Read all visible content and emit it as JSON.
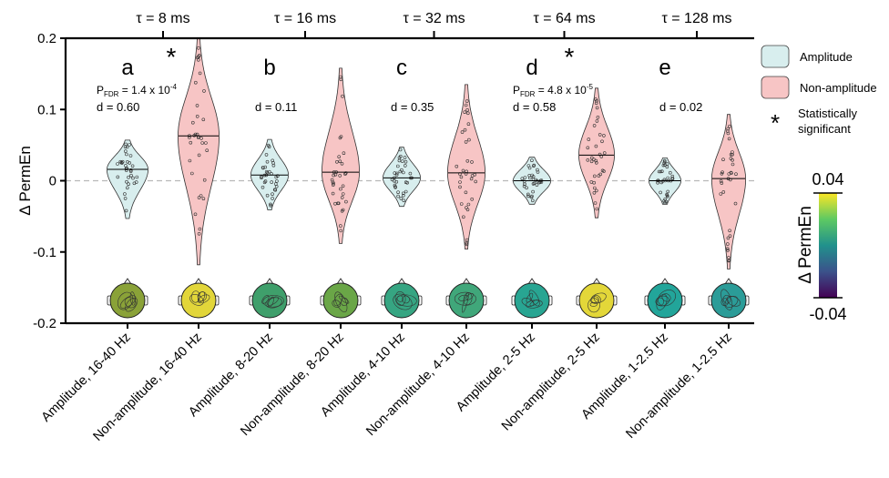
{
  "chart_data": {
    "type": "violin",
    "ylabel": "Δ PermEn",
    "ylim": [
      -0.2,
      0.2
    ],
    "yticks": [
      "0.2",
      "0.1",
      "0",
      "-0.1",
      "-0.2"
    ],
    "top_axis_ticks": [
      "τ = 8 ms",
      "τ = 16 ms",
      "τ = 32 ms",
      "τ = 64 ms",
      "τ = 128 ms"
    ],
    "zero_line": "dashed",
    "categories": [
      "Amplitude, 16-40 Hz",
      "Non-amplitude, 16-40 Hz",
      "Amplitude, 8-20 Hz",
      "Non-amplitude, 8-20 Hz",
      "Amplitude, 4-10 Hz",
      "Non-amplitude, 4-10 Hz",
      "Amplitude, 2-5 Hz",
      "Non-amplitude, 2-5 Hz",
      "Amplitude, 1-2.5 Hz",
      "Non-amplitude, 1-2.5 Hz"
    ],
    "series": [
      {
        "name": "Amplitude",
        "color": "#d8eeee",
        "medians": [
          0.016,
          0.008,
          0.004,
          0.0,
          0.0
        ],
        "ranges": [
          [
            -0.053,
            0.057
          ],
          [
            -0.041,
            0.058
          ],
          [
            -0.036,
            0.047
          ],
          [
            -0.033,
            0.033
          ],
          [
            -0.033,
            0.032
          ]
        ]
      },
      {
        "name": "Non-amplitude",
        "color": "#f7c5c5",
        "medians": [
          0.063,
          0.012,
          0.011,
          0.036,
          0.003
        ],
        "ranges": [
          [
            -0.118,
            0.2
          ],
          [
            -0.088,
            0.158
          ],
          [
            -0.096,
            0.135
          ],
          [
            -0.052,
            0.13
          ],
          [
            -0.124,
            0.093
          ]
        ]
      }
    ],
    "panels": [
      {
        "letter": "a",
        "p_prefix": "P",
        "p_sub": "FDR",
        "p_val": " = 1.4 x 10",
        "p_exp": "-4",
        "d": "d = 0.60",
        "significant": [
          false,
          true
        ]
      },
      {
        "letter": "b",
        "p_prefix": "",
        "p_sub": "",
        "p_val": "",
        "p_exp": "",
        "d": "d = 0.11",
        "significant": [
          false,
          false
        ]
      },
      {
        "letter": "c",
        "p_prefix": "",
        "p_sub": "",
        "p_val": "",
        "p_exp": "",
        "d": "d = 0.35",
        "significant": [
          false,
          false
        ]
      },
      {
        "letter": "d",
        "p_prefix": "P",
        "p_sub": "FDR",
        "p_val": " = 4.8 x 10",
        "p_exp": "-5",
        "d": "d = 0.58",
        "significant": [
          false,
          true
        ]
      },
      {
        "letter": "e",
        "p_prefix": "",
        "p_sub": "",
        "p_val": "",
        "p_exp": "",
        "d": "d = 0.02",
        "significant": [
          false,
          false
        ]
      }
    ],
    "topomap_colors": [
      "#8aa238",
      "#e2d63a",
      "#3f9f6b",
      "#6aa647",
      "#36a582",
      "#40a77a",
      "#28a592",
      "#e3d739",
      "#22a59a",
      "#2b9c98"
    ],
    "legend": {
      "position": "right",
      "items": [
        {
          "label": "Amplitude",
          "color": "#d8eeee"
        },
        {
          "label": "Non-amplitude",
          "color": "#f7c5c5"
        }
      ],
      "significance_symbol": "*",
      "significance_label": [
        "Statistically",
        "significant"
      ]
    },
    "colorbar": {
      "label": "Δ PermEn",
      "max_label": "0.04",
      "min_label": "-0.04",
      "colors": [
        "#fde725",
        "#5ec962",
        "#21918c",
        "#3b528b",
        "#440154"
      ]
    }
  }
}
